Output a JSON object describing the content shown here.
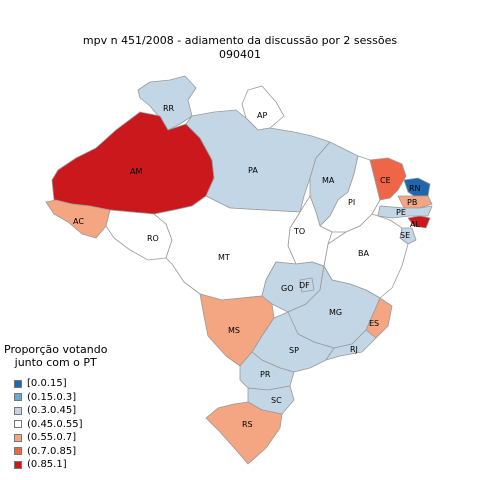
{
  "title": {
    "line1": "mpv  n  451/2008 - adiamento da discussão por 2 sessões",
    "line2": "090401"
  },
  "legend": {
    "title_line1": "Proporção votando",
    "title_line2": "junto com o PT",
    "classes": [
      {
        "label": "[0.0.15]",
        "color": "#2166ac"
      },
      {
        "label": "(0.15.0.3]",
        "color": "#67a9cf"
      },
      {
        "label": "(0.3.0.45]",
        "color": "#c2d6e6"
      },
      {
        "label": "(0.45.0.55]",
        "color": "#ffffff"
      },
      {
        "label": "(0.55.0.7]",
        "color": "#f4a582"
      },
      {
        "label": "(0.7.0.85]",
        "color": "#ef6548"
      },
      {
        "label": "(0.85.1]",
        "color": "#cb181d"
      }
    ]
  },
  "states": [
    {
      "abbr": "RR",
      "class": 2
    },
    {
      "abbr": "AP",
      "class": 3
    },
    {
      "abbr": "AM",
      "class": 6
    },
    {
      "abbr": "PA",
      "class": 2
    },
    {
      "abbr": "MA",
      "class": 2
    },
    {
      "abbr": "CE",
      "class": 5
    },
    {
      "abbr": "RN",
      "class": 0
    },
    {
      "abbr": "PB",
      "class": 4
    },
    {
      "abbr": "PI",
      "class": 3
    },
    {
      "abbr": "PE",
      "class": 2
    },
    {
      "abbr": "AL",
      "class": 6
    },
    {
      "abbr": "SE",
      "class": 2
    },
    {
      "abbr": "AC",
      "class": 4
    },
    {
      "abbr": "RO",
      "class": 3
    },
    {
      "abbr": "TO",
      "class": 3
    },
    {
      "abbr": "BA",
      "class": 3
    },
    {
      "abbr": "MT",
      "class": 3
    },
    {
      "abbr": "GO",
      "class": 2
    },
    {
      "abbr": "DF",
      "class": 2
    },
    {
      "abbr": "MG",
      "class": 2
    },
    {
      "abbr": "ES",
      "class": 4
    },
    {
      "abbr": "MS",
      "class": 4
    },
    {
      "abbr": "SP",
      "class": 2
    },
    {
      "abbr": "RJ",
      "class": 2
    },
    {
      "abbr": "PR",
      "class": 2
    },
    {
      "abbr": "SC",
      "class": 2
    },
    {
      "abbr": "RS",
      "class": 4
    }
  ]
}
